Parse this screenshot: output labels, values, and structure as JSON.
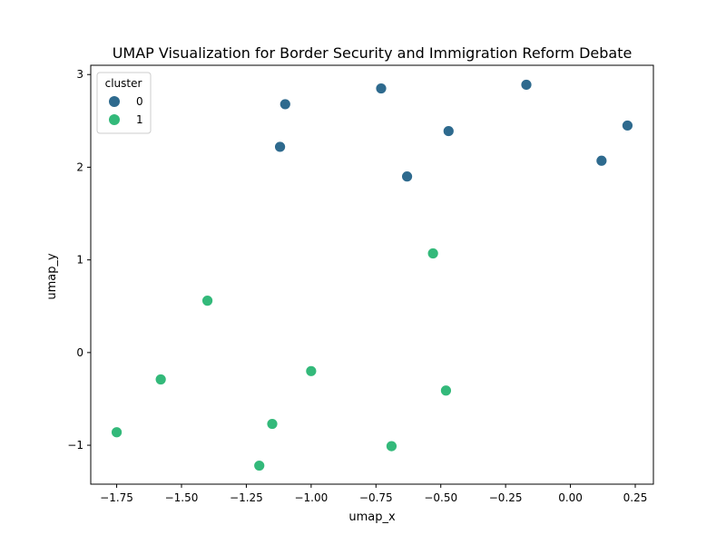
{
  "chart_data": {
    "type": "scatter",
    "title": "UMAP Visualization for Border Security and Immigration Reform Debate",
    "xlabel": "umap_x",
    "ylabel": "umap_y",
    "xlim": [
      -1.85,
      0.32
    ],
    "ylim": [
      -1.42,
      3.1
    ],
    "xticks": [
      -1.75,
      -1.5,
      -1.25,
      -1.0,
      -0.75,
      -0.5,
      -0.25,
      0.0,
      0.25
    ],
    "xtick_labels": [
      "−1.75",
      "−1.50",
      "−1.25",
      "−1.00",
      "−0.75",
      "−0.50",
      "−0.25",
      "0.00",
      "0.25"
    ],
    "yticks": [
      -1,
      0,
      1,
      2,
      3
    ],
    "ytick_labels": [
      "−1",
      "0",
      "1",
      "2",
      "3"
    ],
    "grid": false,
    "legend": {
      "title": "cluster",
      "position": "top-left",
      "entries": [
        {
          "label": "0",
          "color": "#2e6a8e"
        },
        {
          "label": "1",
          "color": "#33b97a"
        }
      ]
    },
    "series": [
      {
        "name": "0",
        "color": "#2e6a8e",
        "points": [
          {
            "x": -1.1,
            "y": 2.68
          },
          {
            "x": -1.12,
            "y": 2.22
          },
          {
            "x": -0.73,
            "y": 2.85
          },
          {
            "x": -0.47,
            "y": 2.39
          },
          {
            "x": -0.63,
            "y": 1.9
          },
          {
            "x": -0.17,
            "y": 2.89
          },
          {
            "x": 0.12,
            "y": 2.07
          },
          {
            "x": 0.22,
            "y": 2.45
          }
        ]
      },
      {
        "name": "1",
        "color": "#33b97a",
        "points": [
          {
            "x": -0.53,
            "y": 1.07
          },
          {
            "x": -1.4,
            "y": 0.56
          },
          {
            "x": -1.58,
            "y": -0.29
          },
          {
            "x": -1.0,
            "y": -0.2
          },
          {
            "x": -0.48,
            "y": -0.41
          },
          {
            "x": -1.75,
            "y": -0.86
          },
          {
            "x": -1.15,
            "y": -0.77
          },
          {
            "x": -0.69,
            "y": -1.01
          },
          {
            "x": -1.2,
            "y": -1.22
          }
        ]
      }
    ]
  }
}
